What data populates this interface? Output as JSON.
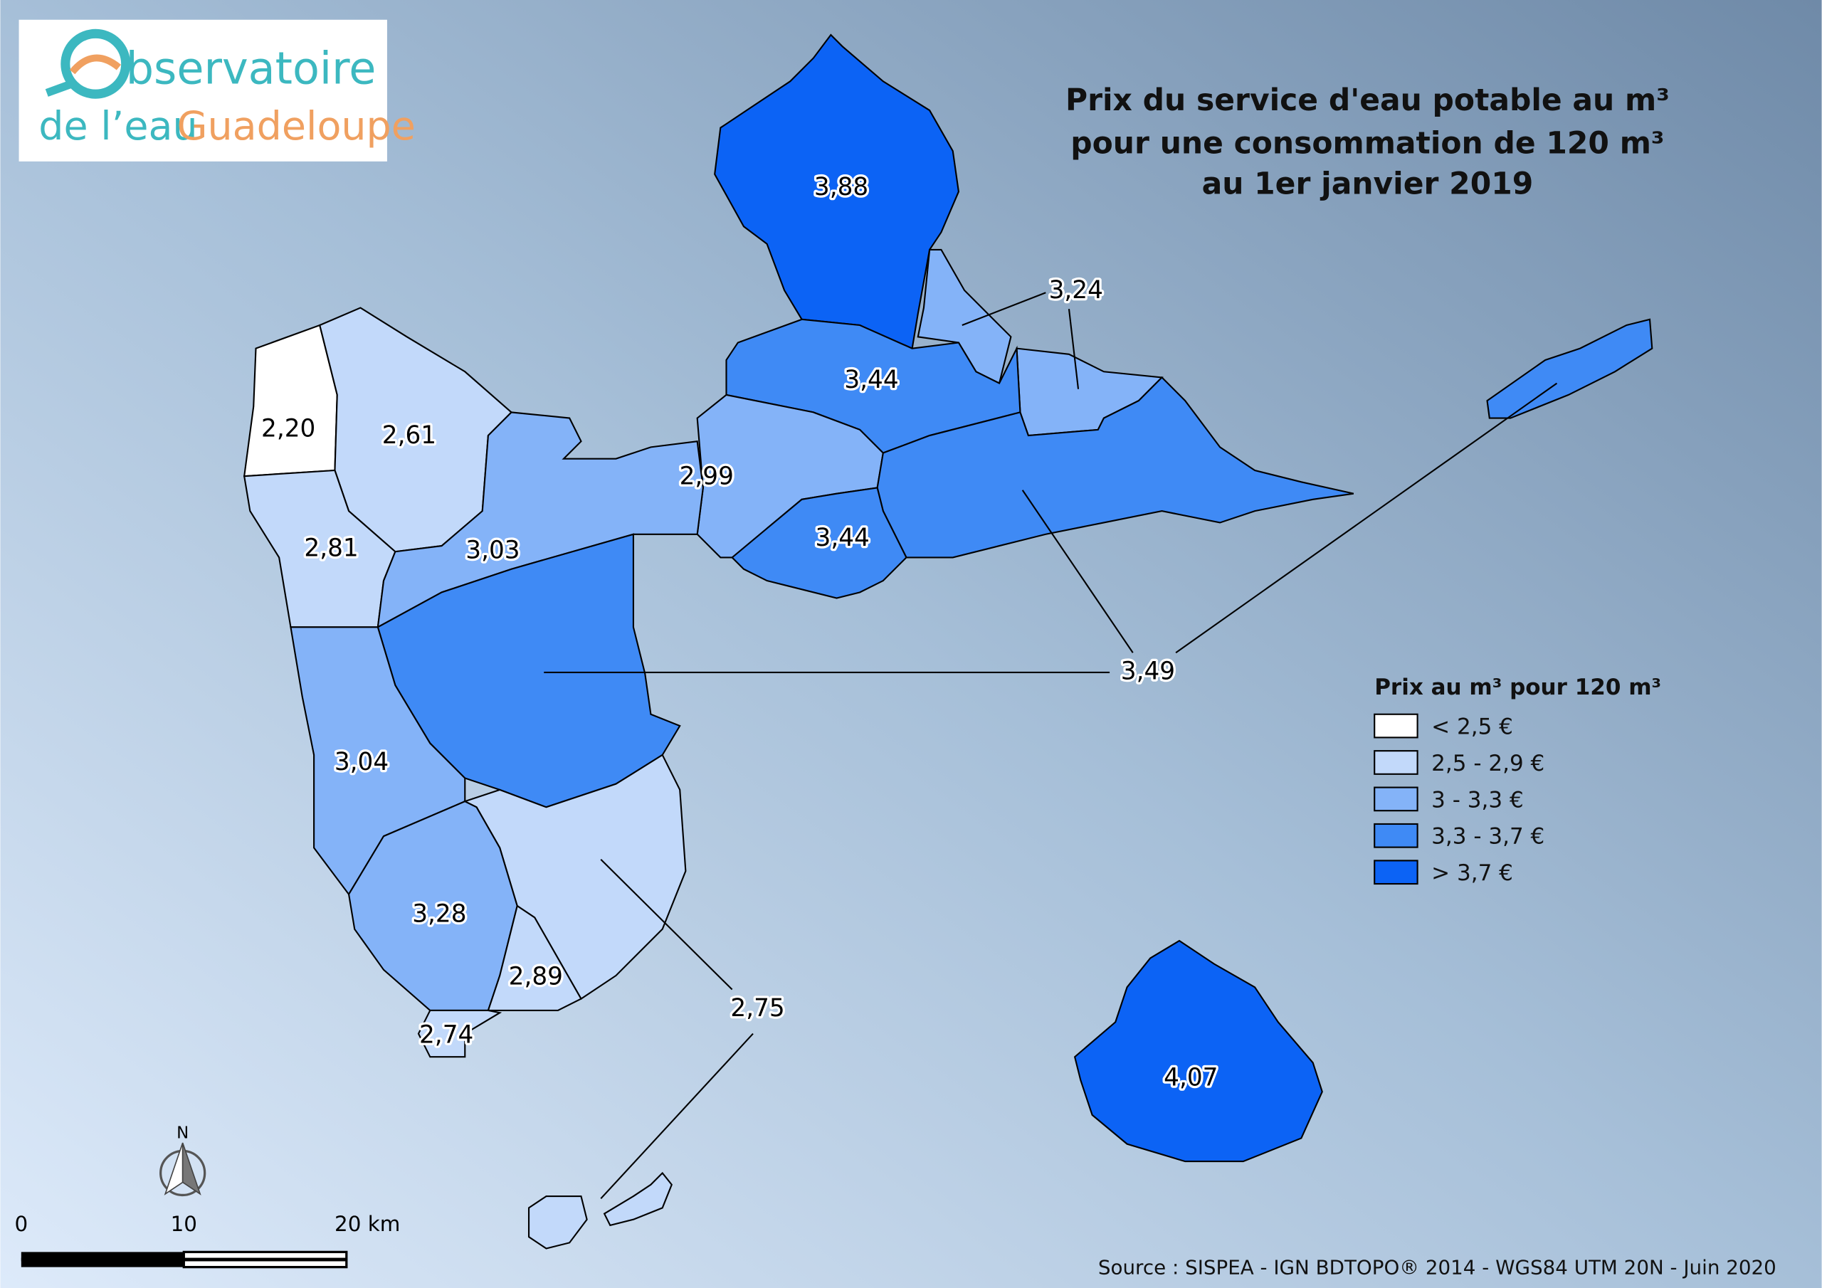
{
  "logo": {
    "line1": "bservatoire",
    "line2a": "de l’eau",
    "line2b": "Guadeloupe"
  },
  "title": [
    "Prix du service d'eau potable au m³",
    "pour une consommation de 120 m³",
    "au 1er janvier 2019"
  ],
  "legend": {
    "title": "Prix au m³ pour 120 m³",
    "items": [
      {
        "label": "< 2,5 €",
        "color": "#ffffff"
      },
      {
        "label": "2,5 - 2,9 €",
        "color": "#c2d9fa"
      },
      {
        "label": "3 - 3,3 €",
        "color": "#84b3f8"
      },
      {
        "label": "3,3 - 3,7 €",
        "color": "#3f8af5"
      },
      {
        "label": "> 3,7 €",
        "color": "#0c63f5"
      }
    ]
  },
  "regions": [
    {
      "label": "3,88",
      "color": "#0c63f5"
    },
    {
      "label": "3,24",
      "color": "#84b3f8"
    },
    {
      "label": "3,44",
      "color": "#3f8af5"
    },
    {
      "label": "2,99",
      "color": "#84b3f8"
    },
    {
      "label": "3,44",
      "color": "#3f8af5"
    },
    {
      "label": "3,49",
      "color": "#3f8af5"
    },
    {
      "label": "2,20",
      "color": "#ffffff"
    },
    {
      "label": "2,61",
      "color": "#c2d9fa"
    },
    {
      "label": "2,81",
      "color": "#c2d9fa"
    },
    {
      "label": "3,03",
      "color": "#84b3f8"
    },
    {
      "label": "3,04",
      "color": "#84b3f8"
    },
    {
      "label": "3,28",
      "color": "#84b3f8"
    },
    {
      "label": "2,89",
      "color": "#c2d9fa"
    },
    {
      "label": "2,74",
      "color": "#c2d9fa"
    },
    {
      "label": "2,75",
      "color": "#c2d9fa"
    },
    {
      "label": "4,07",
      "color": "#0c63f5"
    }
  ],
  "north": "N",
  "scale_bar": [
    "0",
    "10",
    "20 km"
  ],
  "source": "Source : SISPEA - IGN BDTOPO® 2014 - WGS84 UTM 20N - Juin 2020"
}
